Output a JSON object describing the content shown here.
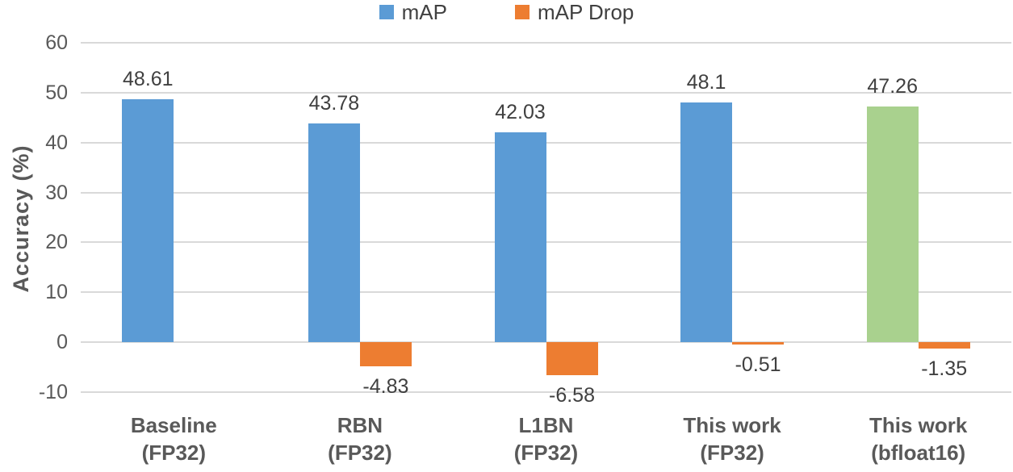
{
  "chart_data": {
    "type": "bar",
    "title": "",
    "xlabel": "",
    "ylabel": "Accuracy (%)",
    "ylim": [
      -10,
      60
    ],
    "yticks": [
      60,
      50,
      40,
      30,
      20,
      10,
      0,
      -10
    ],
    "grid": true,
    "legend_position": "top",
    "categories": [
      {
        "line1": "Baseline",
        "line2": "(FP32)"
      },
      {
        "line1": "RBN",
        "line2": "(FP32)"
      },
      {
        "line1": "L1BN",
        "line2": "(FP32)"
      },
      {
        "line1": "This work",
        "line2": "(FP32)"
      },
      {
        "line1": "This work",
        "line2": "(bfloat16)"
      }
    ],
    "series": [
      {
        "name": "mAP",
        "color": "#5B9BD5",
        "values": [
          48.61,
          43.78,
          42.03,
          48.1,
          47.26
        ],
        "value_labels": [
          "48.61",
          "43.78",
          "42.03",
          "48.1",
          "47.26"
        ],
        "bar_colors": [
          "#5B9BD5",
          "#5B9BD5",
          "#5B9BD5",
          "#5B9BD5",
          "#A9D18E"
        ]
      },
      {
        "name": "mAP Drop",
        "color": "#ED7D31",
        "values": [
          null,
          -4.83,
          -6.58,
          -0.51,
          -1.35
        ],
        "value_labels": [
          "",
          "-4.83",
          "-6.58",
          "-0.51",
          "-1.35"
        ],
        "bar_colors": [
          "#ED7D31",
          "#ED7D31",
          "#ED7D31",
          "#ED7D31",
          "#ED7D31"
        ]
      }
    ],
    "colors": {
      "gridline": "#D9D9D9",
      "axis_text": "#595959",
      "data_label_text": "#404040",
      "highlight_bar": "#A9D18E"
    }
  }
}
